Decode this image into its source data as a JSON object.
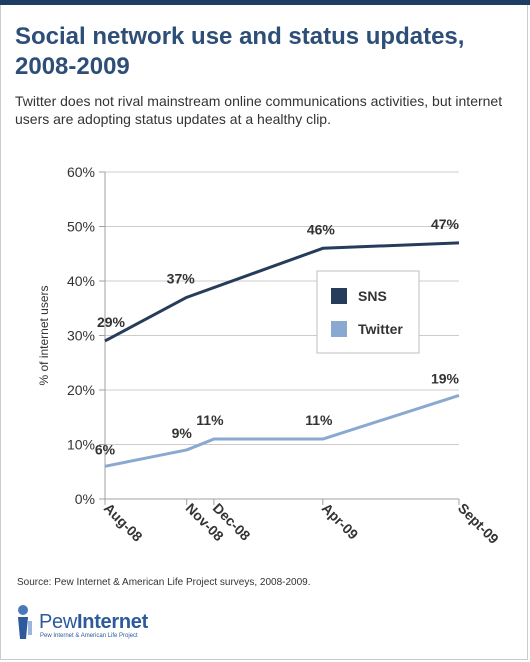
{
  "title": "Social network use and status updates, 2008-2009",
  "subtitle": "Twitter does not rival mainstream online communications activities, but internet users are adopting status updates at a healthy clip.",
  "source": "Source: Pew Internet & American Life Project surveys, 2008-2009.",
  "logo": {
    "word_light": "Pew",
    "word_bold": "Internet",
    "tagline": "Pew Internet & American Life Project"
  },
  "colors": {
    "title": "#2d4e77",
    "sns": "#253c5b",
    "twitter": "#8aa9d0",
    "axis": "#a0a0a0",
    "grid": "#cccccc"
  },
  "chart_data": {
    "type": "line",
    "ylabel": "% of internet users",
    "xlabel": "",
    "ylim": [
      0,
      60
    ],
    "yticks": [
      "0%",
      "10%",
      "20%",
      "30%",
      "40%",
      "50%",
      "60%"
    ],
    "x_labels": [
      "Aug-08",
      "Nov-08",
      "Dec-08",
      "Apr-09",
      "Sept-09"
    ],
    "x_months": [
      0,
      3,
      4,
      8,
      13
    ],
    "legend_position": "right",
    "series": [
      {
        "name": "SNS",
        "x": [
          0,
          3,
          8,
          13
        ],
        "values": [
          29,
          37,
          46,
          47
        ],
        "labels": [
          "29%",
          "37%",
          "46%",
          "47%"
        ]
      },
      {
        "name": "Twitter",
        "x": [
          0,
          3,
          4,
          8,
          13
        ],
        "values": [
          6,
          9,
          11,
          11,
          19
        ],
        "labels": [
          "6%",
          "9%",
          "11%",
          "11%",
          "19%"
        ]
      }
    ]
  }
}
